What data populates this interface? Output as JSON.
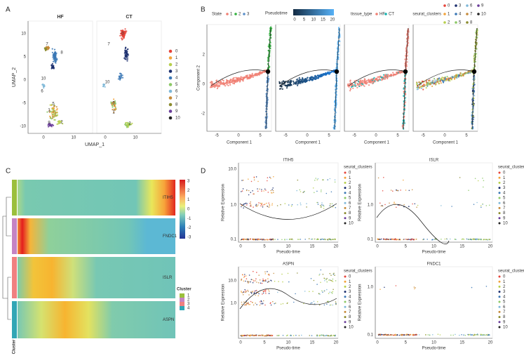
{
  "panels": {
    "A": {
      "label": "A",
      "facets": [
        "HF",
        "CT"
      ],
      "x_title": "UMAP_1",
      "y_title": "UMAP_2",
      "y_ticks": [
        "10",
        "5",
        "0",
        "-5",
        "-10"
      ],
      "x_ticks": [
        "0",
        "10",
        "0",
        "10"
      ],
      "cluster_labels": [
        "8",
        "7",
        "10",
        "6",
        "5",
        "1",
        "9",
        "2",
        "0",
        "7",
        "10",
        "5",
        "1",
        "2"
      ],
      "legend": [
        "0",
        "1",
        "2",
        "3",
        "4",
        "5",
        "6",
        "7",
        "8",
        "9",
        "10"
      ]
    },
    "B": {
      "label": "B",
      "legend_state": {
        "title": "State",
        "items": [
          "1",
          "2",
          "3"
        ]
      },
      "legend_pseudotime": {
        "title": "Pseudotime",
        "ticks": [
          "0",
          "5",
          "10",
          "15",
          "20"
        ]
      },
      "legend_tissue": {
        "title": "tissue_type",
        "items": [
          "HF",
          "CT"
        ]
      },
      "legend_clusters": {
        "title": "seurat_clusters",
        "items": [
          "0",
          "3",
          "6",
          "9",
          "1",
          "4",
          "7",
          "10",
          "2",
          "5",
          "8"
        ]
      },
      "x_title": "Component 1",
      "y_title": "Component 2",
      "x_ticks": [
        "-5",
        "0",
        "5"
      ],
      "y_ticks": [
        "2",
        "0",
        "-2"
      ]
    },
    "C": {
      "label": "C",
      "genes": [
        "ITIH5",
        "FNDC1",
        "ISLR",
        "ASPN"
      ],
      "colorbar_ticks": [
        "3",
        "2",
        "1",
        "0",
        "-1",
        "-2",
        "-3"
      ],
      "legend_title": "Cluster",
      "legend_items": [
        "1",
        "2",
        "3",
        "4"
      ],
      "annotation_label": "Cluster"
    },
    "D": {
      "label": "D",
      "x_title": "Pseudo-time",
      "y_title": "Relative Expression",
      "x_ticks": [
        "0",
        "5",
        "10",
        "15",
        "20"
      ],
      "legend_title": "seurat_clusters",
      "legend_items": [
        "0",
        "1",
        "2",
        "3",
        "4",
        "5",
        "6",
        "7",
        "8",
        "9",
        "10"
      ],
      "plots": [
        {
          "title": "ITIH5",
          "y_ticks": [
            "10.0",
            "1.0",
            "0.1"
          ]
        },
        {
          "title": "ISLR",
          "y_ticks": [
            "1.0",
            "0.1"
          ]
        },
        {
          "title": "ASPN",
          "y_ticks": [
            "10.0",
            "1.0"
          ]
        },
        {
          "title": "FNDC1",
          "y_ticks": [
            "1.0",
            "0.1"
          ]
        }
      ]
    }
  }
}
